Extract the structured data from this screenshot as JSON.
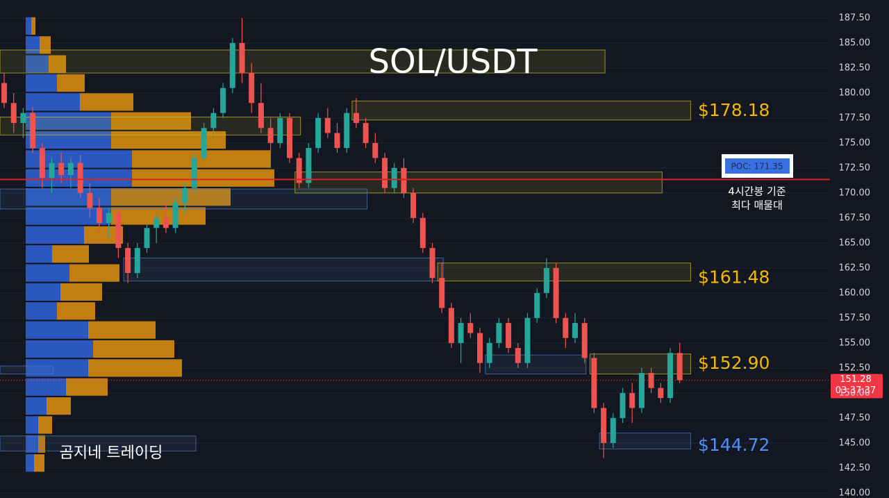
{
  "chart_data": {
    "type": "candlestick",
    "title": "SOL/USDT",
    "watermark": "곰지네 트레이딩",
    "up_color": "#26a69a",
    "down_color": "#ef5350",
    "ylim": [
      139.5,
      189.3
    ],
    "yticks": [
      {
        "value": 140,
        "label": "140.00"
      },
      {
        "value": 142.5,
        "label": "142.50"
      },
      {
        "value": 145,
        "label": "145.00"
      },
      {
        "value": 147.5,
        "label": "147.50"
      },
      {
        "value": 150,
        "label": "150.00"
      },
      {
        "value": 152.5,
        "label": "152.50"
      },
      {
        "value": 155,
        "label": "155.00"
      },
      {
        "value": 157.5,
        "label": "157.50"
      },
      {
        "value": 160,
        "label": "160.00"
      },
      {
        "value": 162.5,
        "label": "162.50"
      },
      {
        "value": 165,
        "label": "165.00"
      },
      {
        "value": 167.5,
        "label": "167.50"
      },
      {
        "value": 170,
        "label": "170.00"
      },
      {
        "value": 172.5,
        "label": "172.50"
      },
      {
        "value": 175,
        "label": "175.00"
      },
      {
        "value": 177.5,
        "label": "177.50"
      },
      {
        "value": 180,
        "label": "180.00"
      },
      {
        "value": 182.5,
        "label": "182.50"
      },
      {
        "value": 185,
        "label": "185.00"
      },
      {
        "value": 187.5,
        "label": "187.50"
      }
    ],
    "grid": true,
    "candles": [
      [
        181,
        182,
        178.5,
        179
      ],
      [
        179,
        180,
        176,
        177
      ],
      [
        177,
        178.5,
        175.5,
        178
      ],
      [
        178,
        178.6,
        174,
        174.5
      ],
      [
        174.5,
        175,
        170.5,
        171.5
      ],
      [
        171.5,
        173.5,
        170,
        173
      ],
      [
        173,
        174,
        171,
        171.8
      ],
      [
        171.8,
        173.5,
        170.5,
        173
      ],
      [
        173,
        173.8,
        169.5,
        170
      ],
      [
        170,
        171,
        167.5,
        168.5
      ],
      [
        168.5,
        169.5,
        166,
        167
      ],
      [
        167,
        168.5,
        165.5,
        168
      ],
      [
        168,
        168.5,
        163.5,
        164.5
      ],
      [
        164.5,
        165,
        161,
        162
      ],
      [
        162,
        165,
        161.5,
        164.5
      ],
      [
        164.5,
        167,
        164,
        166.5
      ],
      [
        166.5,
        168,
        165,
        167.5
      ],
      [
        167.5,
        169,
        166,
        166.5
      ],
      [
        166.5,
        169.5,
        166,
        169
      ],
      [
        169,
        171,
        168,
        170.5
      ],
      [
        170.5,
        174,
        170,
        173.5
      ],
      [
        173.5,
        177,
        173,
        176.5
      ],
      [
        176.5,
        178.5,
        175.5,
        178
      ],
      [
        178,
        181,
        177.5,
        180.5
      ],
      [
        180.5,
        185.5,
        180,
        185
      ],
      [
        185,
        187.5,
        181,
        182
      ],
      [
        182,
        183,
        178,
        179
      ],
      [
        179,
        181,
        176,
        176.5
      ],
      [
        176.5,
        177.5,
        174,
        175
      ],
      [
        175,
        178,
        174.5,
        177.5
      ],
      [
        177.5,
        178,
        173,
        173.5
      ],
      [
        173.5,
        174,
        170.5,
        171
      ],
      [
        171,
        175,
        170.5,
        174.5
      ],
      [
        174.5,
        178,
        174,
        177.5
      ],
      [
        177.5,
        178.5,
        175.5,
        176
      ],
      [
        176,
        177,
        174,
        174.5
      ],
      [
        174.5,
        178.5,
        174,
        178
      ],
      [
        178,
        179.5,
        176.5,
        177
      ],
      [
        177,
        177.5,
        174.5,
        175
      ],
      [
        175,
        176,
        173,
        173.5
      ],
      [
        173.5,
        174,
        170,
        170.5
      ],
      [
        170.5,
        173,
        170,
        172.5
      ],
      [
        172.5,
        173.5,
        169.5,
        170
      ],
      [
        170,
        170.5,
        167,
        167.5
      ],
      [
        167.5,
        168,
        164,
        164.5
      ],
      [
        164.5,
        165,
        161,
        161.5
      ],
      [
        161.5,
        163,
        158,
        158.5
      ],
      [
        158.5,
        159,
        154.5,
        155
      ],
      [
        155,
        157.5,
        153,
        157
      ],
      [
        157,
        158,
        155.5,
        156
      ],
      [
        156,
        156.5,
        152,
        153
      ],
      [
        153,
        155.5,
        152.5,
        155
      ],
      [
        155,
        157.5,
        154.5,
        157
      ],
      [
        157,
        157.5,
        154,
        154.5
      ],
      [
        154.5,
        155,
        152.5,
        153
      ],
      [
        153,
        158,
        152.5,
        157.5
      ],
      [
        157.5,
        160.5,
        157,
        160
      ],
      [
        160,
        163.5,
        159.5,
        162.5
      ],
      [
        162.5,
        163,
        157,
        157.5
      ],
      [
        157.5,
        158,
        154.5,
        155.5
      ],
      [
        155.5,
        158,
        155,
        157
      ],
      [
        157,
        157.5,
        153,
        153.5
      ],
      [
        153.5,
        154,
        148,
        148.5
      ],
      [
        148.5,
        149,
        143.5,
        145
      ],
      [
        145,
        148,
        144.5,
        147.5
      ],
      [
        147.5,
        150.5,
        147,
        150
      ],
      [
        150,
        151,
        147,
        148.5
      ],
      [
        148.5,
        152.5,
        148,
        152
      ],
      [
        152,
        152.5,
        150,
        150.5
      ],
      [
        150.5,
        151,
        149,
        149.5
      ],
      [
        149.5,
        154.5,
        149,
        154
      ],
      [
        154,
        155,
        151,
        151.28
      ]
    ],
    "volume_profile": {
      "buy_color": "#2f5fd0",
      "sell_color": "#d68910",
      "levels": [
        186.7,
        184.8,
        182.9,
        181,
        179.1,
        177.2,
        175.3,
        173.4,
        171.5,
        169.6,
        167.7,
        165.8,
        163.9,
        162,
        160.1,
        158.2,
        156.3,
        154.4,
        152.5,
        150.6,
        148.7,
        146.8,
        144.9,
        143
      ],
      "buy": [
        8,
        20,
        33,
        45,
        78,
        123,
        123,
        153,
        153,
        123,
        123,
        84,
        38,
        63,
        50,
        45,
        90,
        97,
        90,
        58,
        30,
        18,
        18,
        12
      ],
      "sell": [
        6,
        16,
        25,
        40,
        77,
        115,
        165,
        200,
        205,
        172,
        136,
        56,
        53,
        72,
        60,
        55,
        97,
        117,
        135,
        60,
        35,
        20,
        10,
        15
      ]
    },
    "zones": [
      {
        "low": 182,
        "high": 184.3,
        "from": 0,
        "to": 63,
        "color": "#c8b428"
      },
      {
        "low": 177.3,
        "high": 179.2,
        "from": 37,
        "to": 72,
        "color": "#c8b428"
      },
      {
        "low": 175.8,
        "high": 177.6,
        "from": 0,
        "to": 31,
        "color": "#c8b428"
      },
      {
        "low": 170,
        "high": 172.1,
        "from": 31,
        "to": 69,
        "color": "#c8b428"
      },
      {
        "low": 168.4,
        "high": 170.4,
        "from": 0,
        "to": 38,
        "color": "#4a78b8"
      },
      {
        "low": 161.2,
        "high": 163.5,
        "from": 13,
        "to": 46,
        "color": "#4a78b8"
      },
      {
        "low": 161.2,
        "high": 163,
        "from": 46,
        "to": 72,
        "color": "#c8b428"
      },
      {
        "low": 151.9,
        "high": 153.8,
        "from": 51,
        "to": 61,
        "color": "#4a78b8"
      },
      {
        "low": 151.9,
        "high": 153.9,
        "from": 62,
        "to": 72,
        "color": "#c8b428"
      },
      {
        "low": 151.9,
        "high": 152.7,
        "from": 0,
        "to": 5,
        "color": "#4a78b8"
      },
      {
        "low": 144.4,
        "high": 146,
        "from": 63,
        "to": 72,
        "color": "#4a78b8"
      },
      {
        "low": 144.2,
        "high": 145.7,
        "from": 0,
        "to": 20,
        "color": "#4a78b8"
      }
    ],
    "levels": [
      {
        "value": 178.18,
        "label": "$178.18",
        "color": "#f5b800"
      },
      {
        "value": 161.48,
        "label": "$161.48",
        "color": "#f5b800"
      },
      {
        "value": 152.9,
        "label": "$152.90",
        "color": "#f5b800"
      },
      {
        "value": 144.72,
        "label": "$144.72",
        "color": "#4f8ff7"
      }
    ],
    "poc": {
      "value": 171.35,
      "label": "POC: 171.35",
      "color": "#e02020"
    },
    "poc_note": [
      "4시간봉 기준",
      "최다 매물대"
    ],
    "last_price": 151.28,
    "countdown": "03:37:37"
  }
}
